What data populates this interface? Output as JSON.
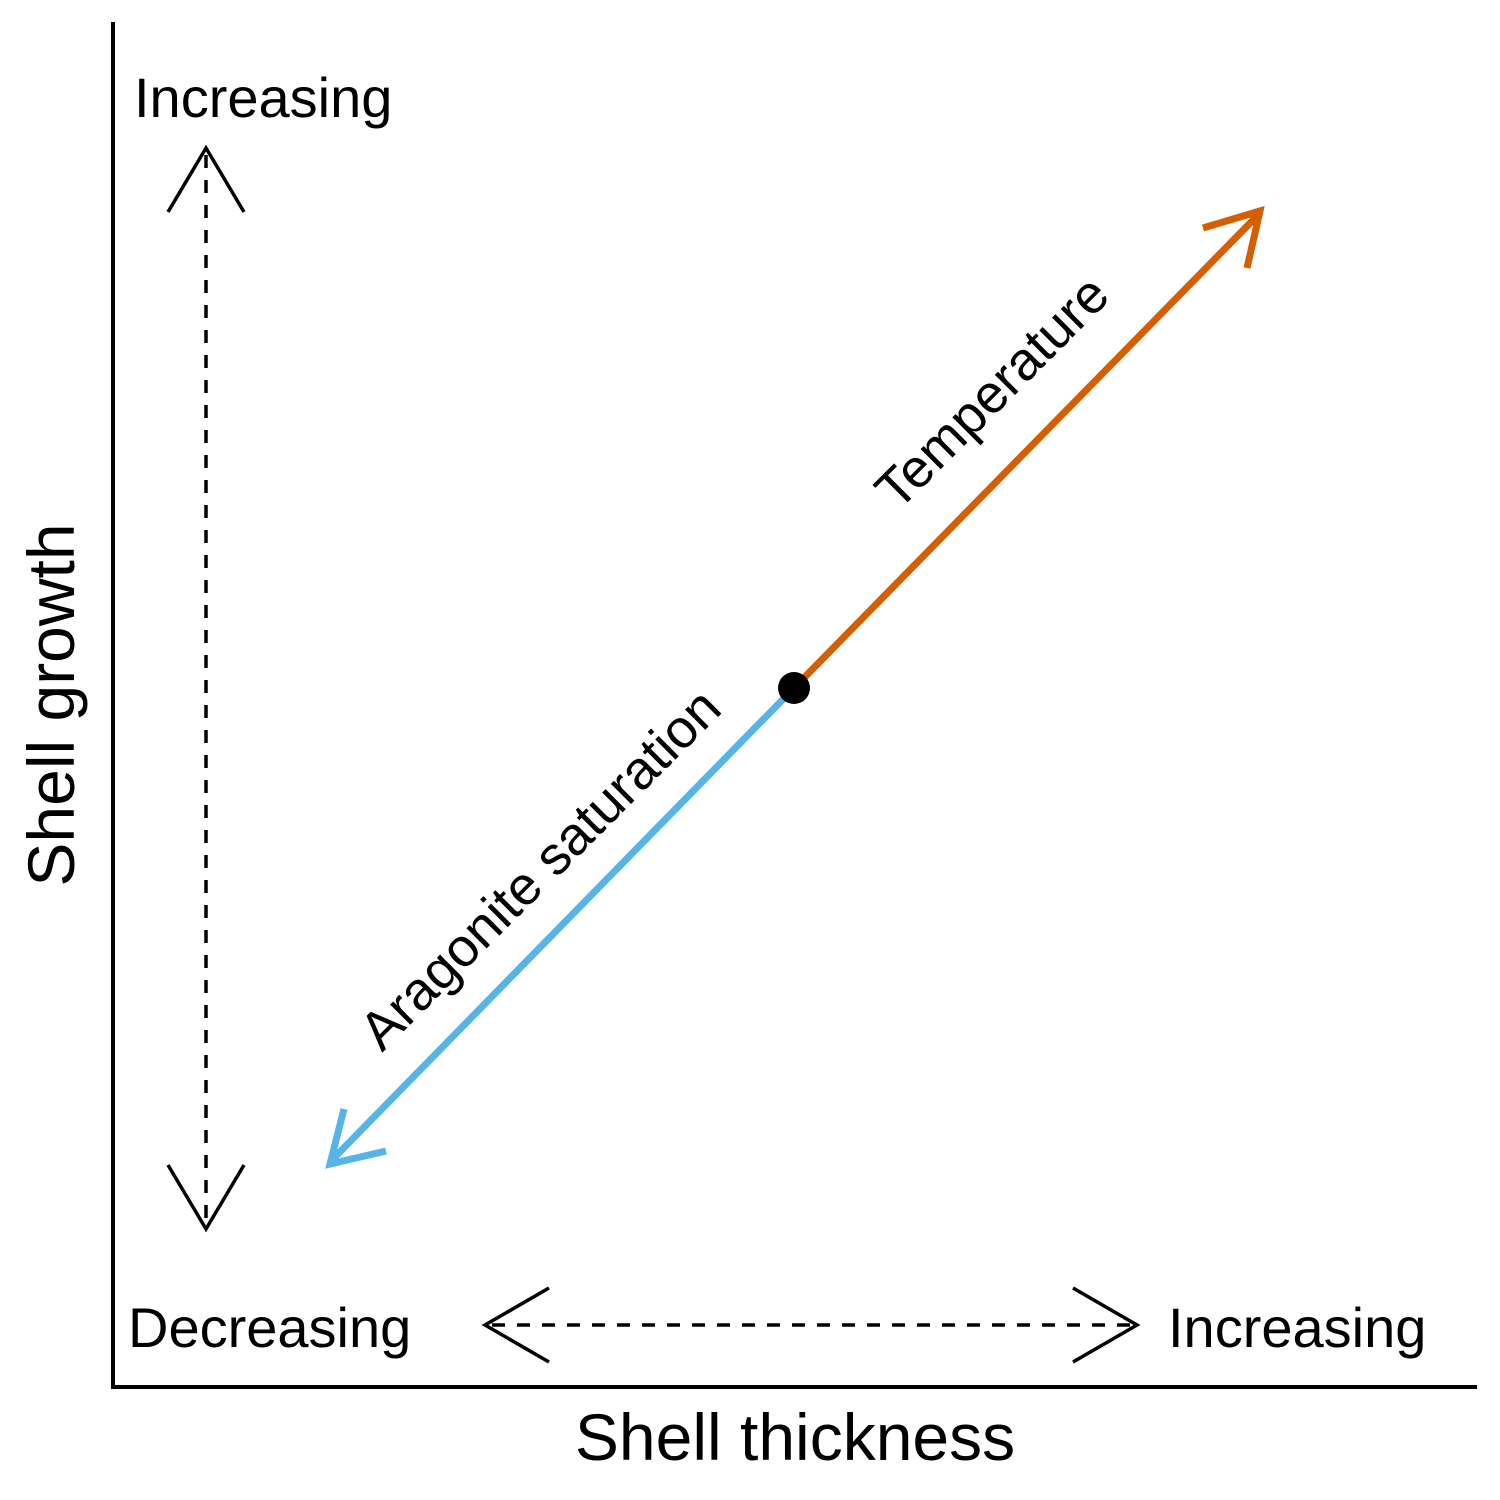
{
  "axes": {
    "x_title": "Shell thickness",
    "y_title": "Shell growth"
  },
  "labels": {
    "y_increasing": "Increasing",
    "x_decreasing": "Decreasing",
    "x_increasing": "Increasing"
  },
  "factors": [
    {
      "label": "Temperature",
      "color": "#D55E00",
      "direction": "increasing thickness and growth"
    },
    {
      "label": "Aragonite saturation",
      "color": "#56B4E9",
      "direction": "decreasing thickness and growth"
    }
  ],
  "colors": {
    "axis": "#000000",
    "origin_point": "#000000"
  }
}
